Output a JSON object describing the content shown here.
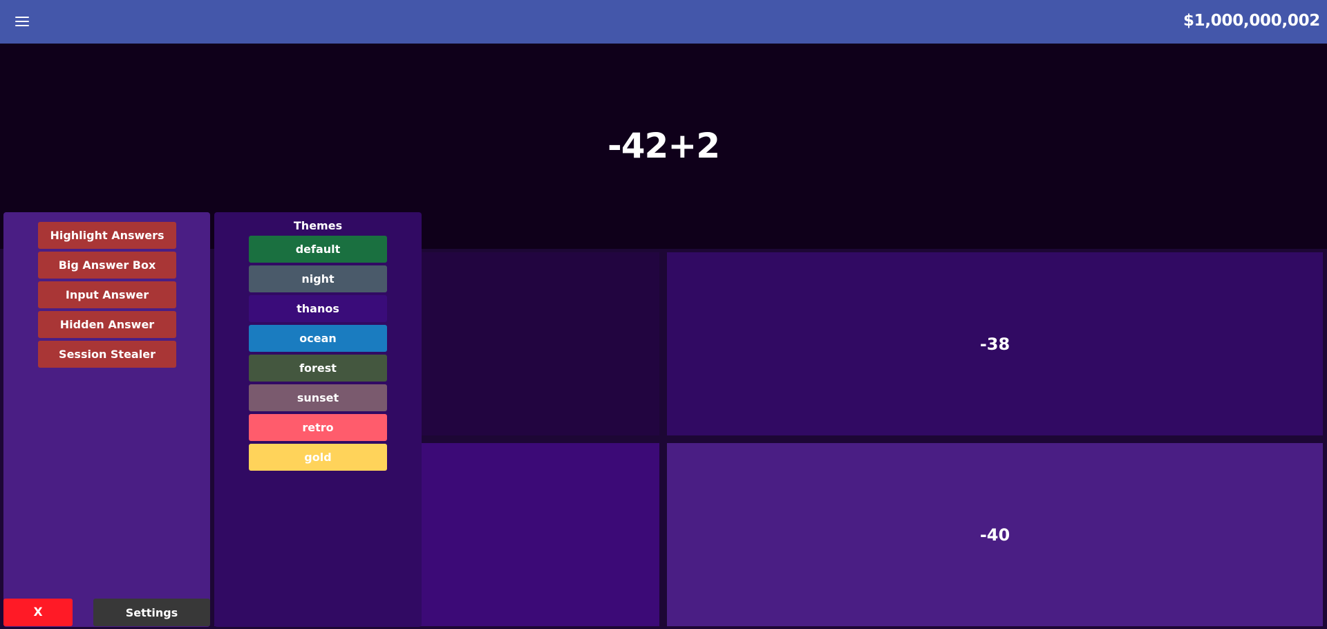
{
  "header": {
    "menu_icon": "hamburger-menu-icon",
    "money": "$1,000,000,002",
    "background_color": "#4457aa"
  },
  "question": {
    "text": "-42+2"
  },
  "answers": [
    {
      "text": "",
      "color": "#220540"
    },
    {
      "text": "-38",
      "color": "#310a63"
    },
    {
      "text": "",
      "color": "#3c0a77"
    },
    {
      "text": "-40",
      "color": "#4a1e84"
    }
  ],
  "cheats": {
    "buttons": [
      {
        "label": "Highlight Answers"
      },
      {
        "label": "Big Answer Box"
      },
      {
        "label": "Input Answer"
      },
      {
        "label": "Hidden Answer"
      },
      {
        "label": "Session Stealer"
      }
    ],
    "button_color": "#a93636"
  },
  "themes": {
    "title": "Themes",
    "items": [
      {
        "label": "default",
        "color": "#1a7040"
      },
      {
        "label": "night",
        "color": "#4a5a6a"
      },
      {
        "label": "thanos",
        "color": "#3a0c7a"
      },
      {
        "label": "ocean",
        "color": "#1a7cc0"
      },
      {
        "label": "forest",
        "color": "#44573f"
      },
      {
        "label": "sunset",
        "color": "#7a5a6e"
      },
      {
        "label": "retro",
        "color": "#ff5c6c"
      },
      {
        "label": "gold",
        "color": "#ffd35a"
      }
    ]
  },
  "footer": {
    "close_label": "X",
    "settings_label": "Settings"
  }
}
